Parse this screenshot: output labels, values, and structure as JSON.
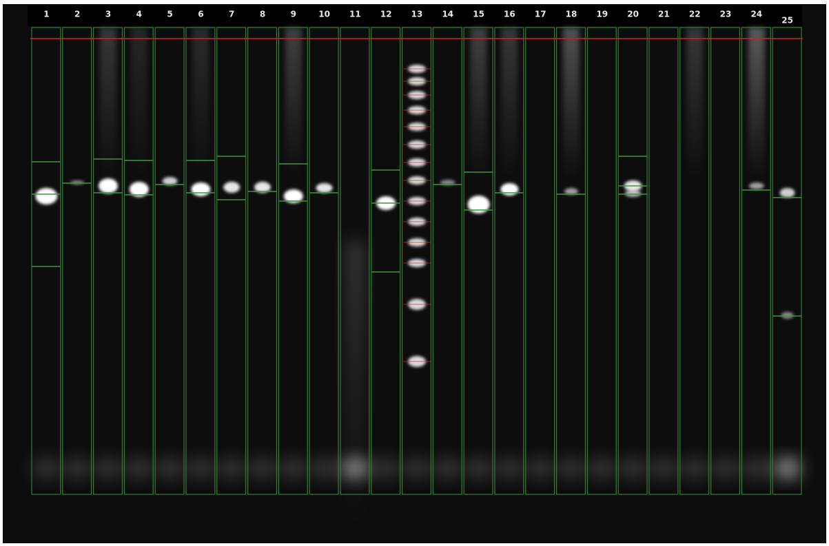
{
  "lanes": {
    "labels": [
      "1",
      "2",
      "3",
      "4",
      "5",
      "6",
      "7",
      "8",
      "9",
      "10",
      "11",
      "12",
      "13",
      "14",
      "15",
      "16",
      "17",
      "18",
      "19",
      "20",
      "21",
      "22",
      "23",
      "24",
      "25"
    ]
  }
}
